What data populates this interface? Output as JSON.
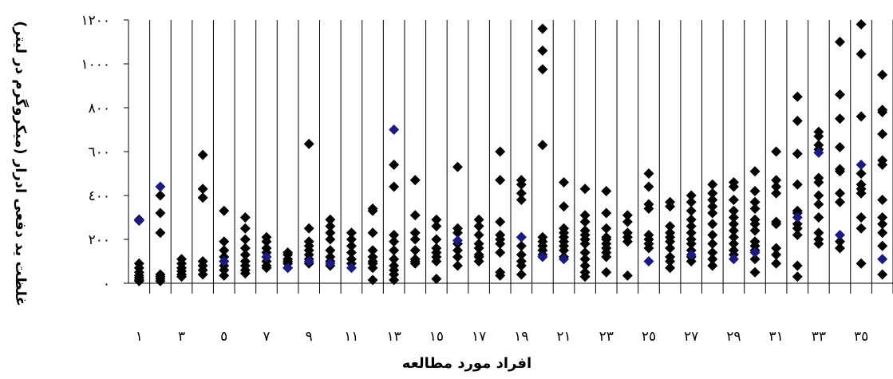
{
  "chart_data": {
    "type": "scatter",
    "title": "",
    "xlabel": "افراد مورد مطالعه",
    "ylabel": "غلظت يد دفعی ادرار (میکروگرم در لیتر)",
    "ylim": [
      0,
      1200
    ],
    "xlim": [
      0.5,
      36.5
    ],
    "y_ticks": [
      0,
      200,
      400,
      600,
      800,
      1000,
      1200
    ],
    "y_tick_labels": [
      "٠",
      "٢٠٠",
      "٤٠٠",
      "٦٠٠",
      "٨٠٠",
      "١٠٠٠",
      "١٢٠٠"
    ],
    "x_ticks": [
      1,
      3,
      5,
      7,
      9,
      11,
      13,
      15,
      17,
      19,
      21,
      23,
      25,
      27,
      29,
      31,
      33,
      35
    ],
    "x_tick_labels": [
      "١",
      "٣",
      "٥",
      "٧",
      "٩",
      "١١",
      "١٣",
      "١٥",
      "١٧",
      "١٩",
      "٢١",
      "٢٣",
      "٢٥",
      "٢٧",
      "٢٩",
      "٣١",
      "٣٣",
      "٣٥"
    ],
    "grid": "vertical lines between subjects",
    "colors": {
      "points": "#000000",
      "highlight": "#1a1a80"
    },
    "series": [
      {
        "values": [
          {
            "x": 1,
            "y": [
              290,
              90,
              70,
              50,
              35,
              25,
              15,
              10
            ]
          },
          {
            "x": 2,
            "y": [
              400,
              320,
              230,
              40,
              30,
              20,
              10
            ]
          },
          {
            "x": 3,
            "y": [
              110,
              90,
              70,
              55,
              40,
              30
            ]
          },
          {
            "x": 4,
            "y": [
              585,
              430,
              390,
              100,
              80,
              60,
              40
            ]
          },
          {
            "x": 5,
            "y": [
              330,
              190,
              150,
              120,
              100,
              80,
              60,
              35
            ]
          },
          {
            "x": 6,
            "y": [
              300,
              250,
              200,
              160,
              130,
              100,
              80,
              60,
              45
            ]
          },
          {
            "x": 7,
            "y": [
              210,
              190,
              160,
              140,
              120,
              100,
              80,
              70
            ]
          },
          {
            "x": 8,
            "y": [
              140,
              130,
              110,
              100,
              90,
              70
            ]
          },
          {
            "x": 9,
            "y": [
              635,
              250,
              190,
              170,
              150,
              130,
              110,
              90
            ]
          },
          {
            "x": 10,
            "y": [
              290,
              260,
              230,
              200,
              150,
              120,
              100,
              80
            ]
          },
          {
            "x": 11,
            "y": [
              230,
              200,
              170,
              140,
              110,
              90
            ]
          },
          {
            "x": 12,
            "y": [
              340,
              330,
              230,
              150,
              120,
              100,
              90,
              70,
              15
            ]
          },
          {
            "x": 13,
            "y": [
              540,
              440,
              220,
              190,
              150,
              110,
              80,
              60,
              40,
              15
            ]
          },
          {
            "x": 14,
            "y": [
              470,
              310,
              230,
              200,
              150,
              110,
              100,
              90
            ]
          },
          {
            "x": 15,
            "y": [
              290,
              260,
              200,
              160,
              140,
              120,
              100,
              20
            ]
          },
          {
            "x": 16,
            "y": [
              530,
              250,
              230,
              180,
              150,
              120,
              80
            ]
          },
          {
            "x": 17,
            "y": [
              290,
              260,
              220,
              180,
              160,
              130,
              120,
              100
            ]
          },
          {
            "x": 18,
            "y": [
              600,
              470,
              280,
              220,
              200,
              180,
              140,
              50,
              35
            ]
          },
          {
            "x": 19,
            "y": [
              470,
              450,
              410,
              380,
              210,
              170,
              130,
              100,
              80,
              40
            ]
          },
          {
            "x": 20,
            "y": [
              1160,
              1060,
              975,
              630,
              210,
              190,
              170,
              150,
              130
            ]
          },
          {
            "x": 21,
            "y": [
              460,
              350,
              250,
              230,
              210,
              190,
              170,
              150,
              120
            ]
          },
          {
            "x": 22,
            "y": [
              430,
              310,
              280,
              240,
              220,
              200,
              180,
              140,
              110,
              80,
              50,
              30
            ]
          },
          {
            "x": 23,
            "y": [
              420,
              320,
              250,
              210,
              200,
              180,
              160,
              140,
              120,
              50
            ]
          },
          {
            "x": 24,
            "y": [
              310,
              280,
              230,
              210,
              190,
              35
            ]
          },
          {
            "x": 25,
            "y": [
              500,
              440,
              360,
              340,
              220,
              200,
              180,
              160
            ]
          },
          {
            "x": 26,
            "y": [
              370,
              350,
              260,
              230,
              210,
              190,
              160,
              120,
              100,
              70
            ]
          },
          {
            "x": 27,
            "y": [
              400,
              370,
              330,
              290,
              260,
              230,
              200,
              180,
              150,
              120,
              100
            ]
          },
          {
            "x": 28,
            "y": [
              450,
              410,
              380,
              350,
              320,
              270,
              220,
              180,
              140,
              110,
              80
            ]
          },
          {
            "x": 29,
            "y": [
              460,
              440,
              380,
              330,
              300,
              270,
              240,
              210,
              180,
              150,
              130
            ]
          },
          {
            "x": 30,
            "y": [
              510,
              420,
              370,
              340,
              290,
              270,
              240,
              190,
              170,
              150,
              110,
              50
            ]
          },
          {
            "x": 31,
            "y": [
              600,
              470,
              440,
              410,
              280,
              270,
              160,
              130,
              90
            ]
          },
          {
            "x": 32,
            "y": [
              850,
              740,
              590,
              450,
              330,
              320,
              270,
              250,
              220,
              80,
              30
            ]
          },
          {
            "x": 33,
            "y": [
              690,
              670,
              630,
              610,
              480,
              460,
              400,
              360,
              300,
              230,
              200,
              180
            ]
          },
          {
            "x": 34,
            "y": [
              1100,
              860,
              750,
              620,
              520,
              510,
              410,
              370,
              190,
              160
            ]
          },
          {
            "x": 35,
            "y": [
              1180,
              1045,
              760,
              500,
              450,
              430,
              410,
              300,
              250,
              90
            ]
          },
          {
            "x": 36,
            "y": [
              950,
              790,
              780,
              680,
              560,
              540,
              380,
              300,
              270,
              230,
              170,
              40
            ]
          }
        ]
      },
      {
        "values": [
          {
            "x": 1,
            "y": [
              285
            ]
          },
          {
            "x": 2,
            "y": [
              440
            ]
          },
          {
            "x": 5,
            "y": [
              100
            ]
          },
          {
            "x": 7,
            "y": [
              120
            ]
          },
          {
            "x": 8,
            "y": [
              70
            ]
          },
          {
            "x": 9,
            "y": [
              100
            ]
          },
          {
            "x": 10,
            "y": [
              90
            ]
          },
          {
            "x": 11,
            "y": [
              70
            ]
          },
          {
            "x": 13,
            "y": [
              700
            ]
          },
          {
            "x": 16,
            "y": [
              195
            ]
          },
          {
            "x": 19,
            "y": [
              210
            ]
          },
          {
            "x": 20,
            "y": [
              120
            ]
          },
          {
            "x": 21,
            "y": [
              110
            ]
          },
          {
            "x": 25,
            "y": [
              100
            ]
          },
          {
            "x": 27,
            "y": [
              130
            ]
          },
          {
            "x": 29,
            "y": [
              110
            ]
          },
          {
            "x": 30,
            "y": [
              140
            ]
          },
          {
            "x": 32,
            "y": [
              300
            ]
          },
          {
            "x": 33,
            "y": [
              595
            ]
          },
          {
            "x": 34,
            "y": [
              220
            ]
          },
          {
            "x": 35,
            "y": [
              540
            ]
          },
          {
            "x": 36,
            "y": [
              110
            ]
          }
        ]
      }
    ]
  }
}
